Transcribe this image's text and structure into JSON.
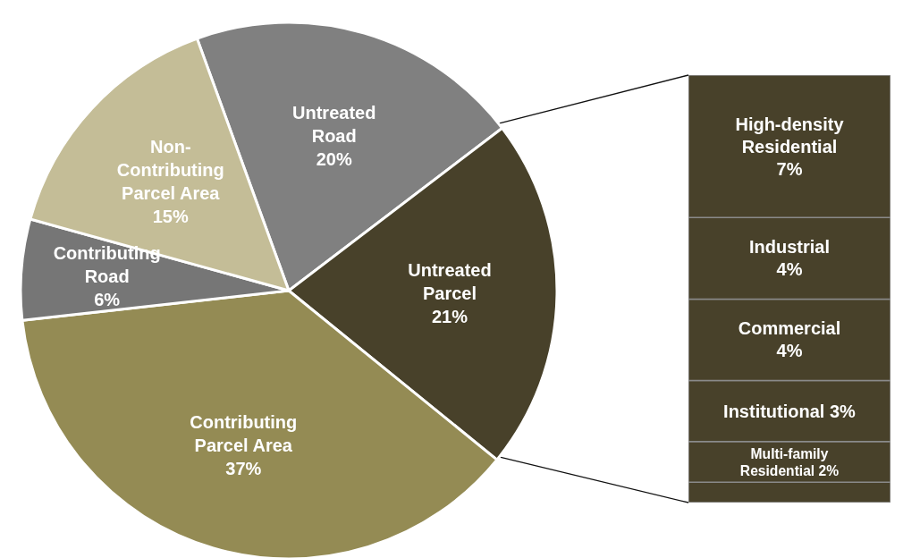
{
  "chart_data": [
    {
      "type": "pie",
      "categories": [
        "Untreated Road",
        "Untreated Parcel",
        "Contributing Parcel Area",
        "Contributing Road",
        "Non-Contributing Parcel Area"
      ],
      "values": [
        20,
        21,
        37,
        6,
        15
      ],
      "value_labels": [
        "20%",
        "21%",
        "37%",
        "6%",
        "15%"
      ],
      "colors": [
        "#808080",
        "#48412a",
        "#948b54",
        "#767676",
        "#c4bd97"
      ],
      "legend": false
    },
    {
      "type": "bar",
      "stacked": true,
      "categories": [
        null
      ],
      "ylim": [
        0,
        21
      ],
      "tick_labels": false,
      "legend": false,
      "series": [
        {
          "color": "#48412a",
          "values": [
            1
          ],
          "value_labels": [
            null
          ]
        },
        {
          "name": "Multi-family Residential",
          "color": "#48412a",
          "values": [
            2
          ],
          "value_labels": [
            "2%"
          ]
        },
        {
          "name": "Institutional",
          "color": "#48412a",
          "values": [
            3
          ],
          "value_labels": [
            "3%"
          ]
        },
        {
          "name": "Commercial",
          "color": "#48412a",
          "values": [
            4
          ],
          "value_labels": [
            "4%"
          ]
        },
        {
          "name": "Industrial",
          "color": "#48412a",
          "values": [
            4
          ],
          "value_labels": [
            "4%"
          ]
        },
        {
          "name": "High-density Residential",
          "color": "#48412a",
          "values": [
            7
          ],
          "value_labels": [
            "7%"
          ]
        }
      ]
    }
  ]
}
